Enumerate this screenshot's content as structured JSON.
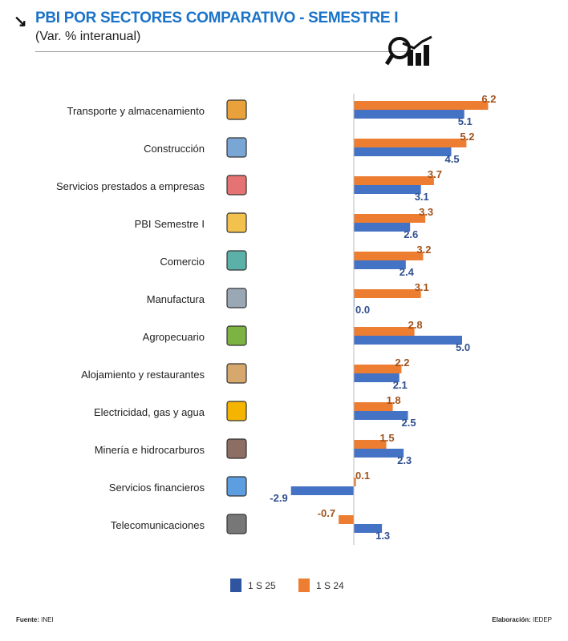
{
  "header": {
    "title": "PBI POR SECTORES COMPARATIVO - SEMESTRE  I",
    "subtitle": "(Var. % interanual)"
  },
  "footer": {
    "source_label": "Fuente:",
    "source": "INEI",
    "credit_label": "Elaboración:",
    "credit": "IEDEP"
  },
  "colors": {
    "s25": "#4472c4",
    "s24": "#ed7d31",
    "label24": "#a0521c",
    "label25": "#2f4f8f",
    "title": "#1a73c8"
  },
  "chart_data": {
    "type": "bar",
    "orientation": "horizontal",
    "title": "PBI POR SECTORES COMPARATIVO - SEMESTRE  I",
    "subtitle": "(Var. % interanual)",
    "categories": [
      "Transporte y almacenamiento",
      "Construcción",
      "Servicios prestados a empresas",
      "PBI Semestre I",
      "Comercio",
      "Manufactura",
      "Agropecuario",
      "Alojamiento y restaurantes",
      "Electricidad, gas y agua",
      "Minería e hidrocarburos",
      "Servicios financieros",
      "Telecomunicaciones"
    ],
    "series": [
      {
        "name": "1 S 24",
        "values": [
          6.2,
          5.2,
          3.7,
          3.3,
          3.2,
          3.1,
          2.8,
          2.2,
          1.8,
          1.5,
          0.1,
          -0.7
        ]
      },
      {
        "name": "1 S 25",
        "values": [
          5.1,
          4.5,
          3.1,
          2.6,
          2.4,
          0.0,
          5.0,
          2.1,
          2.5,
          2.3,
          -2.9,
          1.3
        ]
      }
    ],
    "legend": {
      "position": "bottom",
      "entries": [
        "1 S 25",
        "1 S 24"
      ]
    },
    "grid": false
  }
}
